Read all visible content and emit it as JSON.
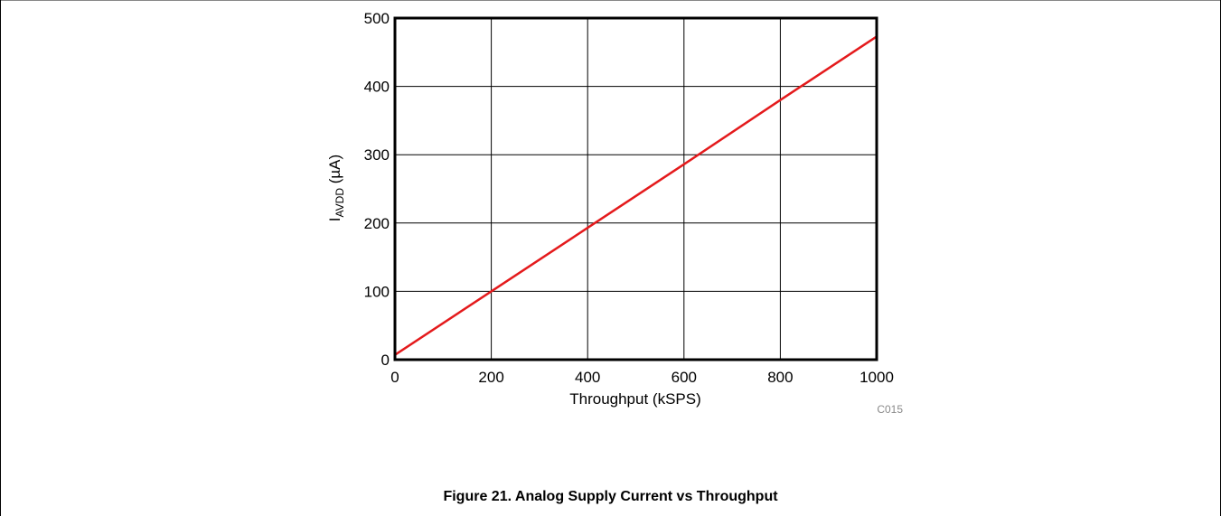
{
  "chart_data": {
    "type": "line",
    "xlabel": "Throughput (kSPS)",
    "ylabel_main": "I",
    "ylabel_sub": "AVDD",
    "ylabel_unit": " (µA)",
    "xlim": [
      0,
      1000
    ],
    "ylim": [
      0,
      500
    ],
    "xticks": [
      0,
      200,
      400,
      600,
      800,
      1000
    ],
    "yticks": [
      0,
      100,
      200,
      300,
      400,
      500
    ],
    "grid": true,
    "series": [
      {
        "color": "#e41a1c",
        "x": [
          0,
          200,
          400,
          600,
          800,
          1000
        ],
        "y": [
          7,
          100,
          193,
          286,
          380,
          473
        ]
      }
    ],
    "code": "C015"
  },
  "caption": "Figure 21. Analog Supply Current vs Throughput"
}
